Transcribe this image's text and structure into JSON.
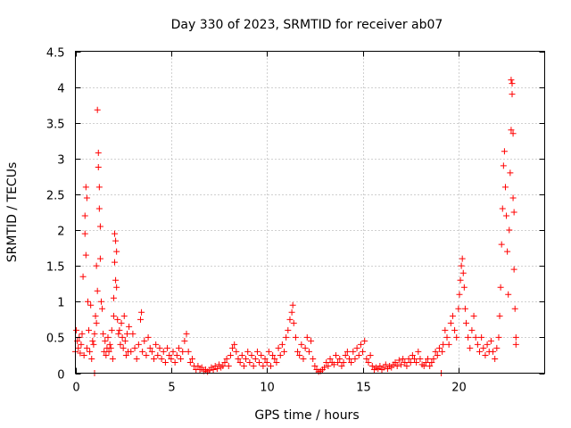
{
  "chart_data": {
    "type": "scatter",
    "title": "Day 330 of 2023, SRMTID for receiver ab07",
    "xlabel": "GPS time / hours",
    "ylabel": "SRMTID / TECUs",
    "xlim": [
      0,
      24.5
    ],
    "ylim": [
      0,
      4.5
    ],
    "xticks": [
      0,
      5,
      10,
      15,
      20
    ],
    "xtick_labels": [
      "0",
      "5",
      "10",
      "15",
      "20"
    ],
    "yticks": [
      0,
      0.5,
      1,
      1.5,
      2,
      2.5,
      3,
      3.5,
      4,
      4.5
    ],
    "ytick_labels": [
      "0",
      "0.5",
      "1",
      "1.5",
      "2",
      "2.5",
      "3",
      "3.5",
      "4",
      "4.5"
    ],
    "grid": true,
    "marker": "plus",
    "color": "#ff0000",
    "series": [
      {
        "name": "SRMTID",
        "points": [
          [
            0.0,
            0.3
          ],
          [
            0.05,
            0.6
          ],
          [
            0.1,
            0.45
          ],
          [
            0.15,
            0.35
          ],
          [
            0.2,
            0.5
          ],
          [
            0.25,
            0.28
          ],
          [
            0.3,
            0.4
          ],
          [
            0.35,
            0.55
          ],
          [
            0.4,
            1.35
          ],
          [
            0.45,
            0.25
          ],
          [
            0.5,
            1.95
          ],
          [
            0.5,
            2.2
          ],
          [
            0.55,
            2.6
          ],
          [
            0.55,
            1.65
          ],
          [
            0.6,
            2.45
          ],
          [
            0.6,
            0.35
          ],
          [
            0.65,
            1.0
          ],
          [
            0.7,
            0.6
          ],
          [
            0.75,
            0.3
          ],
          [
            0.8,
            0.95
          ],
          [
            0.85,
            0.2
          ],
          [
            0.9,
            0.45
          ],
          [
            0.95,
            0.4
          ],
          [
            1.0,
            0.55
          ],
          [
            1.0,
            0.0
          ],
          [
            1.05,
            0.8
          ],
          [
            1.1,
            0.7
          ],
          [
            1.1,
            1.5
          ],
          [
            1.15,
            1.15
          ],
          [
            1.15,
            3.68
          ],
          [
            1.2,
            3.08
          ],
          [
            1.2,
            2.88
          ],
          [
            1.25,
            2.6
          ],
          [
            1.25,
            2.3
          ],
          [
            1.3,
            2.05
          ],
          [
            1.3,
            1.6
          ],
          [
            1.35,
            1.0
          ],
          [
            1.4,
            0.9
          ],
          [
            1.45,
            0.55
          ],
          [
            1.5,
            0.3
          ],
          [
            1.55,
            0.45
          ],
          [
            1.6,
            0.25
          ],
          [
            1.65,
            0.35
          ],
          [
            1.7,
            0.5
          ],
          [
            1.75,
            0.3
          ],
          [
            1.8,
            0.4
          ],
          [
            1.85,
            0.35
          ],
          [
            1.9,
            0.6
          ],
          [
            1.95,
            0.2
          ],
          [
            2.0,
            0.8
          ],
          [
            2.0,
            1.05
          ],
          [
            2.05,
            1.95
          ],
          [
            2.05,
            1.55
          ],
          [
            2.1,
            1.3
          ],
          [
            2.1,
            1.85
          ],
          [
            2.15,
            1.7
          ],
          [
            2.15,
            1.2
          ],
          [
            2.2,
            0.75
          ],
          [
            2.25,
            0.55
          ],
          [
            2.3,
            0.6
          ],
          [
            2.35,
            0.4
          ],
          [
            2.4,
            0.7
          ],
          [
            2.45,
            0.5
          ],
          [
            2.5,
            0.35
          ],
          [
            2.55,
            0.8
          ],
          [
            2.6,
            0.45
          ],
          [
            2.65,
            0.25
          ],
          [
            2.7,
            0.55
          ],
          [
            2.75,
            0.3
          ],
          [
            2.8,
            0.65
          ],
          [
            2.9,
            0.3
          ],
          [
            3.0,
            0.55
          ],
          [
            3.1,
            0.35
          ],
          [
            3.2,
            0.2
          ],
          [
            3.3,
            0.4
          ],
          [
            3.4,
            0.75
          ],
          [
            3.45,
            0.85
          ],
          [
            3.5,
            0.3
          ],
          [
            3.6,
            0.45
          ],
          [
            3.7,
            0.25
          ],
          [
            3.8,
            0.5
          ],
          [
            3.9,
            0.35
          ],
          [
            4.0,
            0.3
          ],
          [
            4.1,
            0.2
          ],
          [
            4.2,
            0.4
          ],
          [
            4.3,
            0.25
          ],
          [
            4.4,
            0.35
          ],
          [
            4.5,
            0.2
          ],
          [
            4.6,
            0.3
          ],
          [
            4.7,
            0.15
          ],
          [
            4.8,
            0.35
          ],
          [
            4.9,
            0.25
          ],
          [
            5.0,
            0.2
          ],
          [
            5.1,
            0.3
          ],
          [
            5.2,
            0.15
          ],
          [
            5.3,
            0.25
          ],
          [
            5.4,
            0.35
          ],
          [
            5.5,
            0.2
          ],
          [
            5.6,
            0.3
          ],
          [
            5.7,
            0.45
          ],
          [
            5.8,
            0.55
          ],
          [
            5.9,
            0.3
          ],
          [
            6.0,
            0.15
          ],
          [
            6.1,
            0.2
          ],
          [
            6.2,
            0.1
          ],
          [
            6.3,
            0.05
          ],
          [
            6.4,
            0.1
          ],
          [
            6.5,
            0.05
          ],
          [
            6.6,
            0.08
          ],
          [
            6.7,
            0.03
          ],
          [
            6.8,
            0.05
          ],
          [
            6.9,
            0.02
          ],
          [
            7.0,
            0.04
          ],
          [
            7.1,
            0.08
          ],
          [
            7.2,
            0.05
          ],
          [
            7.3,
            0.1
          ],
          [
            7.4,
            0.06
          ],
          [
            7.5,
            0.12
          ],
          [
            7.6,
            0.08
          ],
          [
            7.7,
            0.1
          ],
          [
            7.8,
            0.15
          ],
          [
            7.9,
            0.2
          ],
          [
            8.0,
            0.1
          ],
          [
            8.1,
            0.25
          ],
          [
            8.2,
            0.35
          ],
          [
            8.3,
            0.4
          ],
          [
            8.4,
            0.3
          ],
          [
            8.5,
            0.2
          ],
          [
            8.6,
            0.15
          ],
          [
            8.7,
            0.25
          ],
          [
            8.8,
            0.1
          ],
          [
            8.9,
            0.2
          ],
          [
            9.0,
            0.3
          ],
          [
            9.1,
            0.15
          ],
          [
            9.2,
            0.25
          ],
          [
            9.3,
            0.1
          ],
          [
            9.4,
            0.2
          ],
          [
            9.5,
            0.3
          ],
          [
            9.6,
            0.15
          ],
          [
            9.7,
            0.25
          ],
          [
            9.8,
            0.1
          ],
          [
            9.9,
            0.2
          ],
          [
            10.0,
            0.15
          ],
          [
            10.1,
            0.3
          ],
          [
            10.2,
            0.1
          ],
          [
            10.3,
            0.25
          ],
          [
            10.4,
            0.2
          ],
          [
            10.5,
            0.15
          ],
          [
            10.6,
            0.35
          ],
          [
            10.7,
            0.25
          ],
          [
            10.8,
            0.4
          ],
          [
            10.9,
            0.3
          ],
          [
            11.0,
            0.5
          ],
          [
            11.1,
            0.6
          ],
          [
            11.2,
            0.75
          ],
          [
            11.3,
            0.85
          ],
          [
            11.35,
            0.95
          ],
          [
            11.4,
            0.7
          ],
          [
            11.5,
            0.5
          ],
          [
            11.6,
            0.3
          ],
          [
            11.7,
            0.25
          ],
          [
            11.8,
            0.4
          ],
          [
            11.9,
            0.2
          ],
          [
            12.0,
            0.35
          ],
          [
            12.1,
            0.5
          ],
          [
            12.2,
            0.3
          ],
          [
            12.3,
            0.45
          ],
          [
            12.4,
            0.2
          ],
          [
            12.5,
            0.1
          ],
          [
            12.6,
            0.05
          ],
          [
            12.7,
            0.02
          ],
          [
            12.8,
            0.03
          ],
          [
            12.9,
            0.05
          ],
          [
            13.0,
            0.08
          ],
          [
            13.1,
            0.15
          ],
          [
            13.2,
            0.1
          ],
          [
            13.3,
            0.2
          ],
          [
            13.4,
            0.15
          ],
          [
            13.5,
            0.12
          ],
          [
            13.6,
            0.25
          ],
          [
            13.7,
            0.15
          ],
          [
            13.8,
            0.2
          ],
          [
            13.9,
            0.1
          ],
          [
            14.0,
            0.15
          ],
          [
            14.1,
            0.25
          ],
          [
            14.2,
            0.3
          ],
          [
            14.3,
            0.2
          ],
          [
            14.4,
            0.15
          ],
          [
            14.5,
            0.3
          ],
          [
            14.6,
            0.2
          ],
          [
            14.7,
            0.35
          ],
          [
            14.8,
            0.25
          ],
          [
            14.9,
            0.4
          ],
          [
            15.0,
            0.3
          ],
          [
            15.1,
            0.45
          ],
          [
            15.2,
            0.2
          ],
          [
            15.3,
            0.15
          ],
          [
            15.4,
            0.25
          ],
          [
            15.5,
            0.1
          ],
          [
            15.6,
            0.05
          ],
          [
            15.7,
            0.08
          ],
          [
            15.8,
            0.06
          ],
          [
            15.9,
            0.1
          ],
          [
            16.0,
            0.05
          ],
          [
            16.1,
            0.08
          ],
          [
            16.2,
            0.12
          ],
          [
            16.3,
            0.06
          ],
          [
            16.4,
            0.1
          ],
          [
            16.5,
            0.08
          ],
          [
            16.6,
            0.12
          ],
          [
            16.7,
            0.15
          ],
          [
            16.8,
            0.1
          ],
          [
            16.9,
            0.18
          ],
          [
            17.0,
            0.12
          ],
          [
            17.1,
            0.2
          ],
          [
            17.2,
            0.15
          ],
          [
            17.3,
            0.1
          ],
          [
            17.4,
            0.2
          ],
          [
            17.5,
            0.15
          ],
          [
            17.6,
            0.25
          ],
          [
            17.7,
            0.2
          ],
          [
            17.8,
            0.15
          ],
          [
            17.9,
            0.3
          ],
          [
            18.0,
            0.2
          ],
          [
            18.1,
            0.12
          ],
          [
            18.2,
            0.1
          ],
          [
            18.3,
            0.15
          ],
          [
            18.4,
            0.2
          ],
          [
            18.5,
            0.1
          ],
          [
            18.6,
            0.15
          ],
          [
            18.7,
            0.2
          ],
          [
            18.8,
            0.3
          ],
          [
            18.9,
            0.25
          ],
          [
            19.0,
            0.35
          ],
          [
            19.1,
            0.0
          ],
          [
            19.15,
            0.3
          ],
          [
            19.2,
            0.4
          ],
          [
            19.3,
            0.6
          ],
          [
            19.4,
            0.5
          ],
          [
            19.5,
            0.4
          ],
          [
            19.6,
            0.7
          ],
          [
            19.7,
            0.8
          ],
          [
            19.8,
            0.6
          ],
          [
            19.9,
            0.5
          ],
          [
            20.0,
            0.9
          ],
          [
            20.05,
            1.1
          ],
          [
            20.1,
            1.3
          ],
          [
            20.15,
            1.5
          ],
          [
            20.2,
            1.6
          ],
          [
            20.25,
            1.4
          ],
          [
            20.3,
            1.2
          ],
          [
            20.35,
            0.9
          ],
          [
            20.4,
            0.7
          ],
          [
            20.5,
            0.5
          ],
          [
            20.6,
            0.35
          ],
          [
            20.7,
            0.6
          ],
          [
            20.8,
            0.8
          ],
          [
            20.9,
            0.5
          ],
          [
            21.0,
            0.4
          ],
          [
            21.1,
            0.3
          ],
          [
            21.2,
            0.5
          ],
          [
            21.3,
            0.35
          ],
          [
            21.4,
            0.25
          ],
          [
            21.5,
            0.4
          ],
          [
            21.6,
            0.3
          ],
          [
            21.7,
            0.45
          ],
          [
            21.8,
            0.3
          ],
          [
            21.9,
            0.2
          ],
          [
            22.0,
            0.35
          ],
          [
            22.1,
            0.5
          ],
          [
            22.15,
            0.8
          ],
          [
            22.2,
            1.2
          ],
          [
            22.25,
            1.8
          ],
          [
            22.3,
            2.3
          ],
          [
            22.35,
            2.9
          ],
          [
            22.4,
            3.1
          ],
          [
            22.45,
            2.6
          ],
          [
            22.5,
            2.2
          ],
          [
            22.55,
            1.7
          ],
          [
            22.6,
            1.1
          ],
          [
            22.65,
            2.0
          ],
          [
            22.7,
            2.8
          ],
          [
            22.75,
            3.4
          ],
          [
            22.75,
            4.1
          ],
          [
            22.8,
            3.9
          ],
          [
            22.8,
            4.05
          ],
          [
            22.85,
            3.35
          ],
          [
            22.85,
            2.45
          ],
          [
            22.9,
            2.25
          ],
          [
            22.9,
            1.45
          ],
          [
            22.95,
            0.9
          ],
          [
            23.0,
            0.5
          ],
          [
            23.0,
            0.4
          ]
        ]
      }
    ]
  }
}
